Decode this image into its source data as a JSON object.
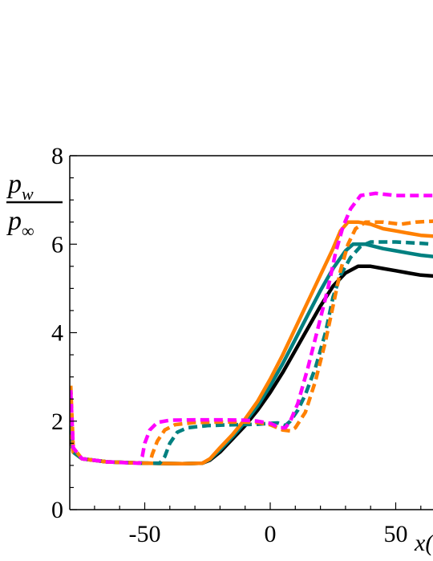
{
  "chart_data": {
    "type": "line",
    "ylabel": {
      "numerator_main": "p",
      "numerator_sub": "w",
      "denominator_main": "p",
      "denominator_sub": "∞"
    },
    "xlabel_visible": "x(",
    "xlim": [
      -80,
      65
    ],
    "ylim": [
      0,
      8
    ],
    "x_ticks": [
      -50,
      0,
      50
    ],
    "x_tick_labels": [
      "-50",
      "0",
      "50"
    ],
    "y_ticks": [
      0,
      2,
      4,
      6,
      8
    ],
    "y_tick_labels": [
      "0",
      "2",
      "4",
      "6",
      "8"
    ],
    "grid": false,
    "series": [
      {
        "color": "#000000",
        "dash": "solid",
        "points": [
          [
            -79.5,
            1.7
          ],
          [
            -78.5,
            1.3
          ],
          [
            -75,
            1.15
          ],
          [
            -65,
            1.08
          ],
          [
            -50,
            1.05
          ],
          [
            -35,
            1.04
          ],
          [
            -27,
            1.05
          ],
          [
            -24,
            1.12
          ],
          [
            -20,
            1.3
          ],
          [
            -15,
            1.6
          ],
          [
            -10,
            1.9
          ],
          [
            -5,
            2.25
          ],
          [
            0,
            2.65
          ],
          [
            5,
            3.1
          ],
          [
            10,
            3.6
          ],
          [
            15,
            4.1
          ],
          [
            20,
            4.6
          ],
          [
            25,
            5.05
          ],
          [
            30,
            5.35
          ],
          [
            35,
            5.5
          ],
          [
            40,
            5.5
          ],
          [
            45,
            5.45
          ],
          [
            50,
            5.4
          ],
          [
            55,
            5.35
          ],
          [
            60,
            5.3
          ],
          [
            65,
            5.28
          ]
        ]
      },
      {
        "color": "#008080",
        "dash": "solid",
        "points": [
          [
            -79.5,
            1.7
          ],
          [
            -78.5,
            1.3
          ],
          [
            -75,
            1.15
          ],
          [
            -65,
            1.08
          ],
          [
            -50,
            1.05
          ],
          [
            -35,
            1.04
          ],
          [
            -27,
            1.05
          ],
          [
            -24,
            1.14
          ],
          [
            -20,
            1.35
          ],
          [
            -15,
            1.65
          ],
          [
            -10,
            1.98
          ],
          [
            -5,
            2.35
          ],
          [
            0,
            2.8
          ],
          [
            5,
            3.3
          ],
          [
            10,
            3.85
          ],
          [
            15,
            4.4
          ],
          [
            20,
            4.95
          ],
          [
            25,
            5.45
          ],
          [
            30,
            5.85
          ],
          [
            33,
            6.0
          ],
          [
            38,
            6.0
          ],
          [
            45,
            5.9
          ],
          [
            50,
            5.85
          ],
          [
            55,
            5.8
          ],
          [
            60,
            5.75
          ],
          [
            65,
            5.72
          ]
        ]
      },
      {
        "color": "#FF8000",
        "dash": "solid",
        "points": [
          [
            -79.5,
            1.7
          ],
          [
            -78.5,
            1.3
          ],
          [
            -75,
            1.15
          ],
          [
            -65,
            1.08
          ],
          [
            -50,
            1.05
          ],
          [
            -35,
            1.04
          ],
          [
            -27,
            1.05
          ],
          [
            -24,
            1.15
          ],
          [
            -20,
            1.4
          ],
          [
            -15,
            1.7
          ],
          [
            -10,
            2.05
          ],
          [
            -5,
            2.45
          ],
          [
            0,
            2.95
          ],
          [
            5,
            3.5
          ],
          [
            10,
            4.1
          ],
          [
            15,
            4.7
          ],
          [
            20,
            5.3
          ],
          [
            25,
            5.9
          ],
          [
            28,
            6.3
          ],
          [
            31,
            6.5
          ],
          [
            35,
            6.5
          ],
          [
            40,
            6.45
          ],
          [
            45,
            6.35
          ],
          [
            50,
            6.3
          ],
          [
            55,
            6.25
          ],
          [
            60,
            6.2
          ],
          [
            65,
            6.18
          ]
        ]
      },
      {
        "color": "#008080",
        "dash": "dashed",
        "points": [
          [
            -79.5,
            1.9
          ],
          [
            -78.5,
            1.3
          ],
          [
            -75,
            1.15
          ],
          [
            -65,
            1.08
          ],
          [
            -55,
            1.06
          ],
          [
            -50,
            1.05
          ],
          [
            -44,
            1.05
          ],
          [
            -42,
            1.2
          ],
          [
            -40,
            1.5
          ],
          [
            -37,
            1.75
          ],
          [
            -33,
            1.85
          ],
          [
            -25,
            1.9
          ],
          [
            -15,
            1.92
          ],
          [
            -5,
            1.93
          ],
          [
            0,
            1.95
          ],
          [
            3,
            1.96
          ],
          [
            6,
            1.9
          ],
          [
            8,
            2.0
          ],
          [
            11,
            2.25
          ],
          [
            14,
            2.6
          ],
          [
            18,
            3.2
          ],
          [
            22,
            4.0
          ],
          [
            25,
            4.8
          ],
          [
            28,
            5.3
          ],
          [
            32,
            5.7
          ],
          [
            36,
            5.95
          ],
          [
            40,
            6.05
          ],
          [
            50,
            6.05
          ],
          [
            60,
            6.02
          ],
          [
            65,
            6.0
          ]
        ]
      },
      {
        "color": "#FF8000",
        "dash": "dashed",
        "points": [
          [
            -79.5,
            2.8
          ],
          [
            -78.5,
            1.4
          ],
          [
            -75,
            1.15
          ],
          [
            -65,
            1.08
          ],
          [
            -55,
            1.06
          ],
          [
            -50,
            1.05
          ],
          [
            -48,
            1.05
          ],
          [
            -47,
            1.25
          ],
          [
            -45,
            1.55
          ],
          [
            -42,
            1.8
          ],
          [
            -38,
            1.92
          ],
          [
            -30,
            1.97
          ],
          [
            -20,
            1.98
          ],
          [
            -10,
            1.98
          ],
          [
            -5,
            1.97
          ],
          [
            0,
            1.92
          ],
          [
            5,
            1.8
          ],
          [
            8,
            1.78
          ],
          [
            10,
            1.85
          ],
          [
            14,
            2.2
          ],
          [
            18,
            2.9
          ],
          [
            22,
            3.8
          ],
          [
            25,
            4.6
          ],
          [
            28,
            5.4
          ],
          [
            31,
            6.0
          ],
          [
            34,
            6.35
          ],
          [
            38,
            6.5
          ],
          [
            45,
            6.5
          ],
          [
            52,
            6.45
          ],
          [
            58,
            6.5
          ],
          [
            65,
            6.52
          ]
        ]
      },
      {
        "color": "#FF00FF",
        "dash": "dashed",
        "points": [
          [
            -79.5,
            2.7
          ],
          [
            -78.5,
            1.4
          ],
          [
            -75,
            1.15
          ],
          [
            -65,
            1.08
          ],
          [
            -57,
            1.06
          ],
          [
            -52,
            1.05
          ],
          [
            -51,
            1.2
          ],
          [
            -50,
            1.5
          ],
          [
            -48,
            1.8
          ],
          [
            -45,
            1.97
          ],
          [
            -40,
            2.02
          ],
          [
            -30,
            2.03
          ],
          [
            -20,
            2.03
          ],
          [
            -10,
            2.02
          ],
          [
            -5,
            2.0
          ],
          [
            0,
            1.95
          ],
          [
            4,
            1.85
          ],
          [
            6,
            1.85
          ],
          [
            8,
            2.0
          ],
          [
            11,
            2.4
          ],
          [
            15,
            3.2
          ],
          [
            19,
            4.1
          ],
          [
            23,
            5.0
          ],
          [
            26,
            5.8
          ],
          [
            29,
            6.4
          ],
          [
            32,
            6.8
          ],
          [
            36,
            7.1
          ],
          [
            42,
            7.15
          ],
          [
            50,
            7.1
          ],
          [
            58,
            7.1
          ],
          [
            65,
            7.1
          ]
        ]
      }
    ]
  }
}
